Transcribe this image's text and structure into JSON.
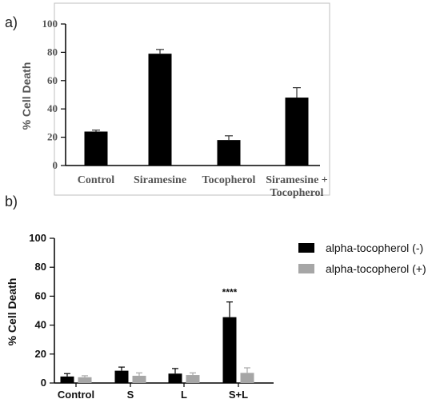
{
  "chart_data": [
    {
      "panel": "a)",
      "type": "bar",
      "categories": [
        "Control",
        "Siramesine",
        "Tocopherol",
        "Siramesine +\nTocopherol"
      ],
      "values": [
        24,
        79,
        18,
        48
      ],
      "errors": [
        1,
        3,
        3,
        7
      ],
      "ylabel": "% Cell Death",
      "ylim": [
        0,
        100
      ],
      "yticks": [
        0,
        20,
        40,
        60,
        80,
        100
      ],
      "grid": false,
      "colors": {
        "bar": "#000000",
        "frame": "#bfbfbf"
      }
    },
    {
      "panel": "b)",
      "type": "bar",
      "categories": [
        "Control",
        "S",
        "L",
        "S+L"
      ],
      "series": [
        {
          "name": "alpha-tocopherol (-)",
          "values": [
            4.5,
            8.5,
            6.5,
            45.5
          ],
          "errors": [
            2,
            2.5,
            3.5,
            10.5
          ],
          "color": "#000000"
        },
        {
          "name": "alpha-tocopherol (+)",
          "values": [
            4,
            5,
            5.5,
            7
          ],
          "errors": [
            1,
            2,
            1.5,
            3.5
          ],
          "color": "#a6a6a6"
        }
      ],
      "ylabel": "% Cell Death",
      "ylim": [
        0,
        100
      ],
      "yticks": [
        0,
        20,
        40,
        60,
        80,
        100
      ],
      "annotations": [
        {
          "category": "S+L",
          "series": 0,
          "text": "****"
        }
      ],
      "legend": "top-right",
      "grid": false
    }
  ]
}
